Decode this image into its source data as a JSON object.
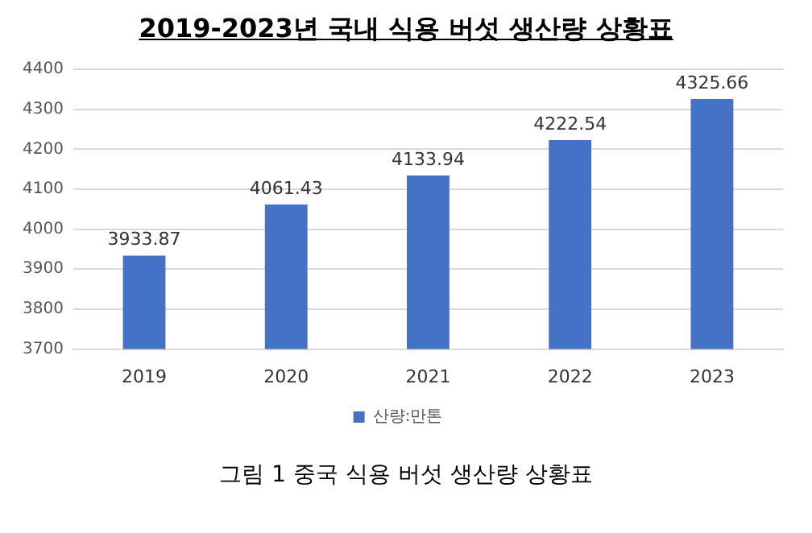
{
  "chart_data": {
    "type": "bar",
    "title": "2019-2023년 국내 식용 버섯 생산량 상황표",
    "categories": [
      "2019",
      "2020",
      "2021",
      "2022",
      "2023"
    ],
    "series": [
      {
        "name": "산량:만톤",
        "color": "#4472c4",
        "values": [
          3933.87,
          4061.43,
          4133.94,
          4222.54,
          4325.66
        ]
      }
    ],
    "ylim": [
      3700,
      4400
    ],
    "yticks": [
      3700,
      3800,
      3900,
      4000,
      4100,
      4200,
      4300,
      4400
    ],
    "grid": "y",
    "legend": "bottom",
    "data_labels": true,
    "annotations": [
      "그림 1 중국 식용 버섯 생산량 상황표"
    ]
  }
}
